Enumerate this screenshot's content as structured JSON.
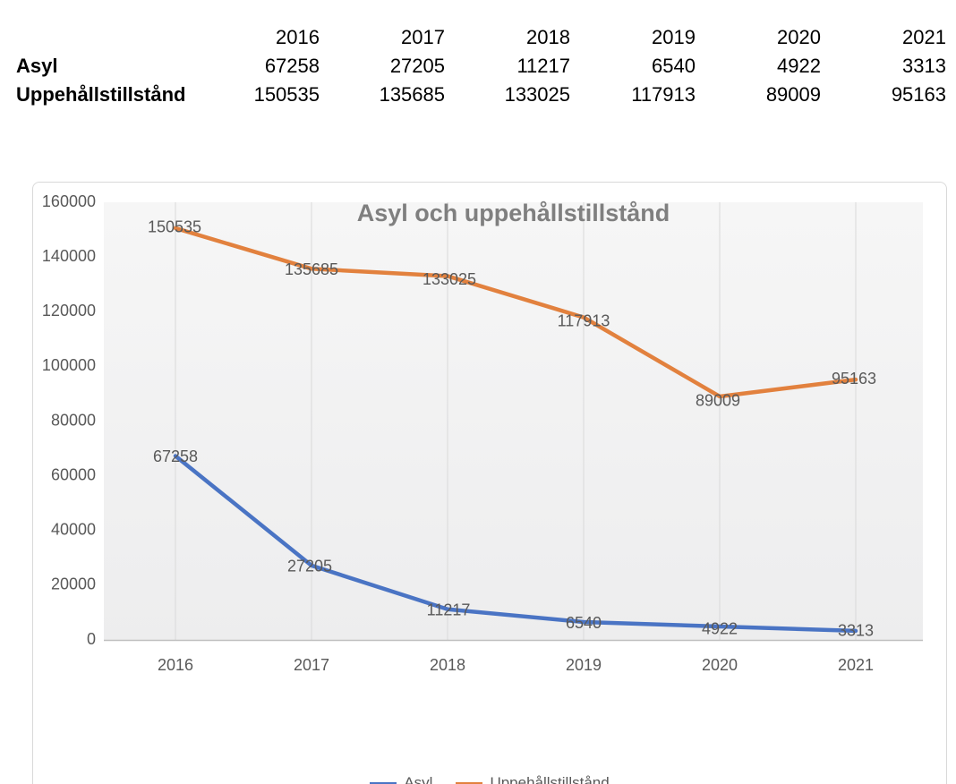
{
  "table": {
    "corner_label": "",
    "years": [
      "2016",
      "2017",
      "2018",
      "2019",
      "2020",
      "2021"
    ],
    "rows": [
      {
        "label": "Asyl",
        "values": [
          "67258",
          "27205",
          "11217",
          "6540",
          "4922",
          "3313"
        ]
      },
      {
        "label": "Uppehållstillstånd",
        "values": [
          "150535",
          "135685",
          "133025",
          "117913",
          "89009",
          "95163"
        ]
      }
    ]
  },
  "chart_data": {
    "type": "line",
    "title": "Asyl och uppehållstillstånd",
    "categories": [
      "2016",
      "2017",
      "2018",
      "2019",
      "2020",
      "2021"
    ],
    "series": [
      {
        "name": "Asyl",
        "color": "#4A74C4",
        "values": [
          67258,
          27205,
          11217,
          6540,
          4922,
          3313
        ]
      },
      {
        "name": "Uppehållstillstånd",
        "color": "#E2813E",
        "values": [
          150535,
          135685,
          133025,
          117913,
          89009,
          95163
        ]
      }
    ],
    "ylim": [
      0,
      160000
    ],
    "ytick_step": 20000,
    "ytick_labels": [
      "0",
      "20000",
      "40000",
      "60000",
      "80000",
      "100000",
      "120000",
      "140000",
      "160000"
    ],
    "grid": "vertical-only",
    "data_labels": true,
    "legend_position": "bottom"
  },
  "colors": {
    "plot_area_bg_top": "#F6F6F6",
    "plot_area_bg_bottom": "#EDEDEE",
    "gridline": "#D9D9D9",
    "axis_line": "#BFBFBF",
    "axis_text": "#595959",
    "data_label_text": "#595959",
    "title_text": "#7F7F7F",
    "chart_border": "#D9D9D9",
    "table_text": "#000000"
  }
}
